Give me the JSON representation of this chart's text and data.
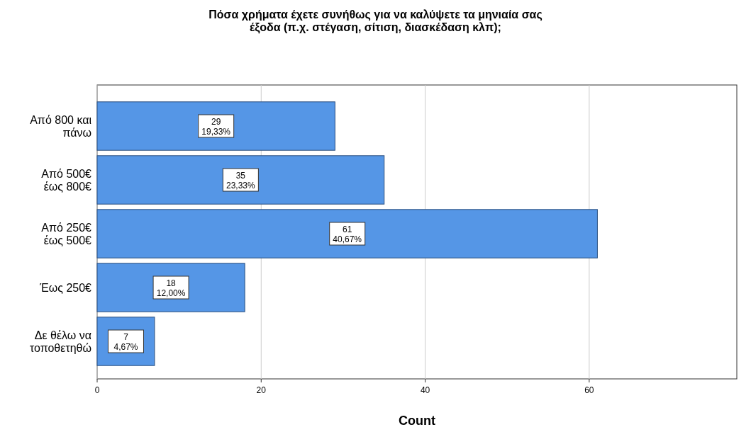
{
  "chart_data": {
    "type": "bar",
    "orientation": "horizontal",
    "title": "Πόσα χρήματα έχετε συνήθως για να καλύψετε τα μηνιαία σας έξοδα (π.χ. στέγαση, σίτιση, διασκέδαση κλπ);",
    "xlabel": "Count",
    "categories": [
      "Από 800 και πάνω",
      "Από 500€ έως 800€",
      "Από 250€ έως 500€",
      "Έως 250€",
      "Δε θέλω να τοποθετηθώ"
    ],
    "values": [
      29,
      35,
      61,
      18,
      7
    ],
    "value_labels": [
      "29\n19,33%",
      "35\n23,33%",
      "61\n40,67%",
      "18\n12,00%",
      "7\n4,67%"
    ],
    "color": "#5596e6",
    "xlim": [
      0,
      78
    ],
    "xticks": [
      0,
      20,
      40,
      60
    ],
    "grid": "x"
  }
}
